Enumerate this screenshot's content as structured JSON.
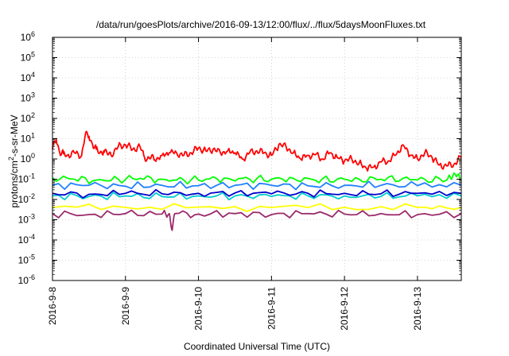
{
  "chart_data": {
    "type": "line",
    "title": "/data/run/goesPlots/archive/2016-09-13/12:00/flux/../flux/5daysMoonFluxes.txt",
    "xlabel": "Coordinated Universal Time (UTC)",
    "ylabel": {
      "prefix": "protons/cm",
      "sup": "2",
      "suffix": "-s-sr-MeV"
    },
    "yscale": "log",
    "ylim_exp": [
      -6,
      6
    ],
    "y_ticks": [
      {
        "base": "10",
        "exp": "6"
      },
      {
        "base": "10",
        "exp": "5"
      },
      {
        "base": "10",
        "exp": "4"
      },
      {
        "base": "10",
        "exp": "3"
      },
      {
        "base": "10",
        "exp": "2"
      },
      {
        "base": "10",
        "exp": "1"
      },
      {
        "base": "10",
        "exp": "0"
      },
      {
        "base": "10",
        "exp": "-1"
      },
      {
        "base": "10",
        "exp": "-2"
      },
      {
        "base": "10",
        "exp": "-3"
      },
      {
        "base": "10",
        "exp": "-4"
      },
      {
        "base": "10",
        "exp": "-5"
      },
      {
        "base": "10",
        "exp": "-6"
      }
    ],
    "x_ticks": [
      "2016-9-8",
      "2016-9-9",
      "2016-9-10",
      "2016-9-11",
      "2016-9-12",
      "2016-9-13"
    ],
    "xlim_days": [
      0,
      5.6
    ],
    "grid": true,
    "series": [
      {
        "color": "#ff0000",
        "x": [
          0,
          0.05,
          0.1,
          0.15,
          0.2,
          0.3,
          0.4,
          0.45,
          0.5,
          0.55,
          0.6,
          0.65,
          0.7,
          0.75,
          0.8,
          0.9,
          1.0,
          1.1,
          1.2,
          1.25,
          1.3,
          1.35,
          1.4,
          1.5,
          1.6,
          1.7,
          1.8,
          1.9,
          2.0,
          2.1,
          2.2,
          2.3,
          2.4,
          2.5,
          2.6,
          2.7,
          2.8,
          2.9,
          3.0,
          3.1,
          3.2,
          3.3,
          3.4,
          3.5,
          3.6,
          3.7,
          3.8,
          3.9,
          4.0,
          4.1,
          4.2,
          4.3,
          4.4,
          4.5,
          4.6,
          4.7,
          4.8,
          4.9,
          5.0,
          5.1,
          5.2,
          5.3,
          5.4,
          5.5,
          5.6
        ],
        "y": [
          3,
          10,
          2,
          1.8,
          1.5,
          2,
          1.5,
          16,
          13,
          5,
          3,
          2,
          2.5,
          1.8,
          1.6,
          4,
          5,
          3,
          4,
          1.5,
          1,
          1.2,
          0.9,
          1.5,
          2,
          2,
          1.5,
          2,
          3.5,
          2.5,
          3,
          2,
          2.5,
          2,
          1,
          2,
          2.5,
          2,
          1.5,
          5,
          4,
          2,
          1,
          1.5,
          1.6,
          1,
          2,
          1.2,
          0.8,
          1,
          0.6,
          0.35,
          0.4,
          0.7,
          0.8,
          1.5,
          5,
          1.5,
          1,
          2,
          1.2,
          0.5,
          0.45,
          0.55,
          1.2
        ]
      },
      {
        "color": "#00ff00",
        "x": [
          0,
          0.3,
          0.6,
          0.9,
          1.2,
          1.5,
          1.8,
          2.1,
          2.4,
          2.7,
          3.0,
          3.3,
          3.6,
          3.9,
          4.2,
          4.5,
          4.8,
          5.1,
          5.4,
          5.5,
          5.6
        ],
        "y": [
          0.12,
          0.1,
          0.09,
          0.1,
          0.11,
          0.1,
          0.09,
          0.1,
          0.11,
          0.1,
          0.1,
          0.11,
          0.09,
          0.1,
          0.1,
          0.1,
          0.11,
          0.1,
          0.09,
          0.2,
          0.09
        ]
      },
      {
        "color": "#2080ff",
        "x": [
          0,
          0.5,
          1.0,
          1.5,
          2.0,
          2.5,
          3.0,
          3.5,
          4.0,
          4.5,
          5.0,
          5.6
        ],
        "y": [
          0.05,
          0.05,
          0.045,
          0.05,
          0.048,
          0.05,
          0.05,
          0.047,
          0.05,
          0.05,
          0.048,
          0.05
        ]
      },
      {
        "color": "#00cccc",
        "x": [
          0,
          0.5,
          1.0,
          1.5,
          2.0,
          2.5,
          3.0,
          3.5,
          4.0,
          4.5,
          5.0,
          5.6
        ],
        "y": [
          0.015,
          0.014,
          0.015,
          0.014,
          0.015,
          0.015,
          0.014,
          0.015,
          0.015,
          0.014,
          0.015,
          0.015
        ]
      },
      {
        "color": "#0000cc",
        "x": [
          0,
          0.5,
          1.0,
          1.5,
          2.0,
          2.5,
          3.0,
          3.5,
          4.0,
          4.5,
          5.0,
          5.6
        ],
        "y": [
          0.02,
          0.018,
          0.02,
          0.019,
          0.02,
          0.021,
          0.019,
          0.02,
          0.02,
          0.019,
          0.02,
          0.02
        ]
      },
      {
        "color": "#ffff00",
        "x": [
          0,
          1.0,
          2.0,
          3.0,
          4.0,
          5.0,
          5.6
        ],
        "y": [
          0.004,
          0.004,
          0.0042,
          0.004,
          0.0041,
          0.004,
          0.004
        ]
      },
      {
        "color": "#9a2a6a",
        "x": [
          0,
          0.5,
          1.0,
          1.5,
          1.6,
          1.64,
          1.68,
          2.0,
          2.5,
          3.0,
          3.5,
          4.0,
          4.5,
          5.0,
          5.6
        ],
        "y": [
          0.002,
          0.0018,
          0.002,
          0.0019,
          0.002,
          0.0003,
          0.002,
          0.0019,
          0.002,
          0.0018,
          0.002,
          0.0019,
          0.002,
          0.0018,
          0.002
        ]
      }
    ]
  }
}
